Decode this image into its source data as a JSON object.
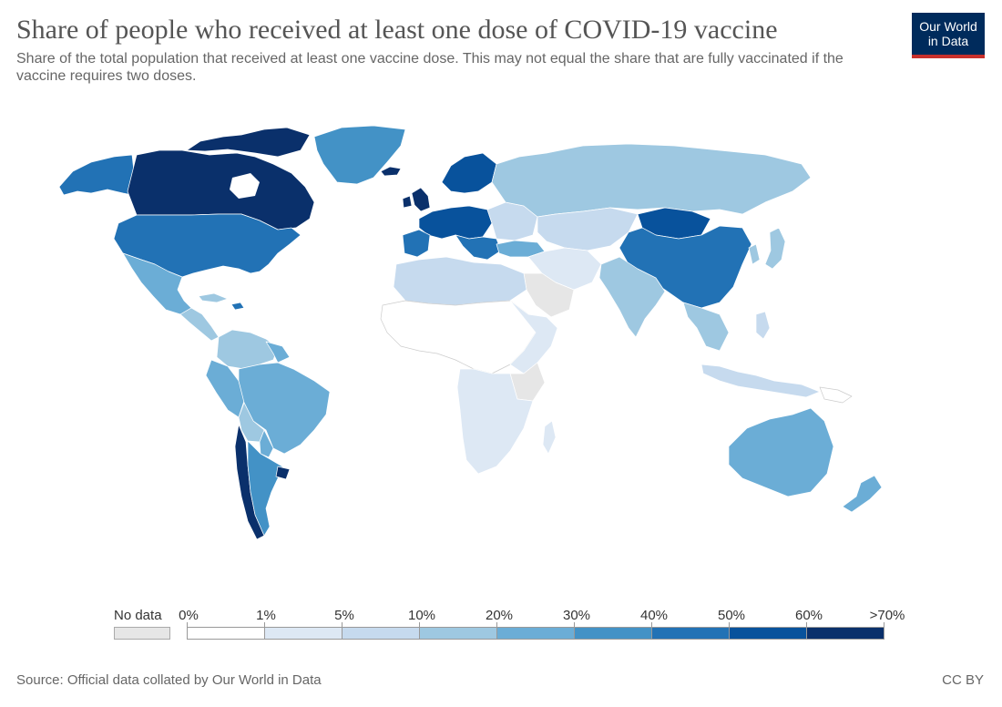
{
  "header": {
    "title": "Share of people who received at least one dose of COVID-19 vaccine",
    "subtitle": "Share of the total population that received at least one vaccine dose. This may not equal the share that are fully vaccinated if the vaccine requires two doses."
  },
  "logo": {
    "line1": "Our World",
    "line2": "in Data",
    "bg_color": "#002b5c",
    "accent_color": "#c9302c"
  },
  "legend": {
    "no_data_label": "No data",
    "no_data_color": "#e6e6e6",
    "bins": [
      {
        "label": "0%",
        "color": "#ffffff"
      },
      {
        "label": "1%",
        "color": "#dde8f4"
      },
      {
        "label": "5%",
        "color": "#c6daee"
      },
      {
        "label": "10%",
        "color": "#9ec8e1"
      },
      {
        "label": "20%",
        "color": "#6badd6"
      },
      {
        "label": "30%",
        "color": "#4392c6"
      },
      {
        "label": "40%",
        "color": "#2272b5"
      },
      {
        "label": "50%",
        "color": "#08529c"
      },
      {
        "label": "60%",
        "color": "#0a306b"
      }
    ],
    "max_label": ">70%"
  },
  "footer": {
    "source": "Source: Official data collated by Our World in Data",
    "license": "CC BY"
  }
}
